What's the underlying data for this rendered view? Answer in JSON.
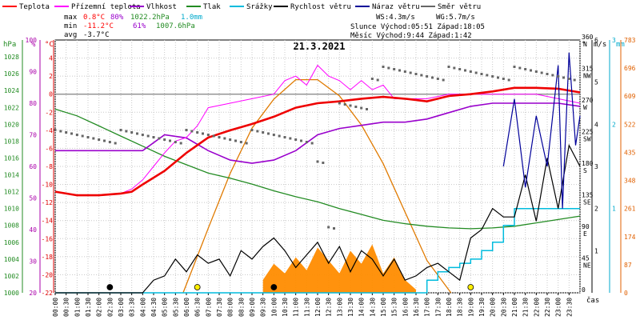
{
  "chart_data": {
    "type": "line",
    "title": "21.3.2021",
    "x_axis": {
      "label": "čas",
      "ticks": [
        "00:00",
        "00:30",
        "01:00",
        "01:30",
        "02:00",
        "02:30",
        "03:00",
        "03:30",
        "04:00",
        "04:30",
        "05:00",
        "05:30",
        "06:00",
        "06:30",
        "07:00",
        "07:30",
        "08:00",
        "08:30",
        "09:00",
        "09:30",
        "10:00",
        "10:30",
        "11:00",
        "11:30",
        "12:00",
        "12:30",
        "13:00",
        "13:30",
        "14:00",
        "14:30",
        "15:00",
        "15:30",
        "16:00",
        "16:30",
        "17:00",
        "17:30",
        "18:00",
        "18:30",
        "19:00",
        "19:30",
        "20:00",
        "20:30",
        "21:00",
        "21:30",
        "22:00",
        "22:30",
        "23:00",
        "23:30"
      ]
    },
    "axes": {
      "pressure": {
        "label": "hPa",
        "min": 1000,
        "max": 1030,
        "ticks": [
          "1000",
          "1002",
          "1004",
          "1006",
          "1008",
          "1010",
          "1012",
          "1014",
          "1016",
          "1018",
          "1020",
          "1022",
          "1024",
          "1026",
          "1028"
        ],
        "color": "#228b22"
      },
      "humidity": {
        "label": "%",
        "min": 20,
        "max": 100,
        "ticks": [
          "20",
          "30",
          "40",
          "50",
          "60",
          "70",
          "80",
          "90",
          "100"
        ],
        "color": "#aa00aa"
      },
      "temperature": {
        "label": "°C",
        "min": -22,
        "max": 6,
        "ticks": [
          "-22",
          "-20",
          "-18",
          "-16",
          "-14",
          "-12",
          "-10",
          "-8",
          "-6",
          "-4",
          "-2",
          "0",
          "2",
          "4"
        ],
        "color": "#dd0000"
      },
      "direction": {
        "label": "°",
        "ticks": [
          "0",
          "45",
          "90",
          "135",
          "180",
          "225",
          "270",
          "315",
          "360"
        ],
        "names": [
          "",
          "NE",
          "E",
          "SE",
          "S",
          "SW",
          "W",
          "NW",
          "N"
        ],
        "color": "#000000"
      },
      "wind": {
        "label": "m/s",
        "min": 0,
        "max": 6,
        "ticks": [
          "0",
          "1",
          "2",
          "3",
          "4",
          "5",
          "6"
        ],
        "color": "#000000"
      },
      "rain": {
        "label": "mm",
        "min": 0,
        "max": 3,
        "ticks": [
          "0",
          "1",
          "2",
          "3"
        ],
        "color": "#00aacc"
      },
      "radiation": {
        "ticks": [
          "0",
          "87",
          "174",
          "261",
          "348",
          "435",
          "522",
          "609",
          "696",
          "783"
        ],
        "min": 0,
        "max": 783,
        "color": "#e06000"
      }
    },
    "legend": [
      {
        "name": "Teplota",
        "color": "#ff0000"
      },
      {
        "name": "Přízemní teplota",
        "color": "#ff00ff"
      },
      {
        "name": "Vlhkost",
        "color": "#9900cc"
      },
      {
        "name": "Tlak",
        "color": "#228b22"
      },
      {
        "name": "Srážky",
        "color": "#00bbdd"
      },
      {
        "name": "Rychlost větru",
        "color": "#000000"
      },
      {
        "name": "Náraz větru",
        "color": "#000099"
      },
      {
        "name": "Směr větru",
        "color": "#666666"
      }
    ],
    "stats": {
      "max_label": "max",
      "max_temp": "0.8°C",
      "max_hum": "80%",
      "max_press": "1022.2hPa",
      "rain_total": "1.0mm",
      "min_label": "min",
      "min_temp": "-11.2°C",
      "min_hum": "61%",
      "min_press": "1007.6hPa",
      "avg_label": "avg",
      "avg_temp": "-3.7°C",
      "ws": "WS:4.3m/s",
      "wg": "WG:5.7m/s",
      "sun": "Slunce Východ:05:51  Západ:18:05",
      "moon": "Měsíc  Východ:9:44   Západ:1:42"
    },
    "series": [
      {
        "name": "Teplota",
        "axis": "temperature",
        "x": [
          0,
          1,
          2,
          3,
          3.5,
          4,
          5,
          6,
          7,
          8,
          9,
          10,
          11,
          12,
          13,
          14,
          15,
          16,
          17,
          18,
          19,
          20,
          21,
          22,
          23,
          24
        ],
        "values": [
          -10.8,
          -11.2,
          -11.2,
          -11.0,
          -10.8,
          -10.0,
          -8.5,
          -6.5,
          -4.8,
          -4.0,
          -3.3,
          -2.5,
          -1.5,
          -1.0,
          -0.8,
          -0.5,
          -0.3,
          -0.5,
          -0.8,
          -0.2,
          0.0,
          0.3,
          0.7,
          0.7,
          0.6,
          0.2
        ]
      },
      {
        "name": "Přízemní teplota",
        "axis": "temperature",
        "x": [
          0,
          1,
          2,
          3,
          3.5,
          4,
          4.5,
          5,
          5.5,
          6,
          6.5,
          7,
          8,
          9,
          10,
          10.5,
          11,
          11.5,
          12,
          12.5,
          13,
          13.5,
          14,
          14.5,
          15,
          15.5,
          16,
          17,
          18,
          19,
          20,
          21,
          22,
          23,
          24
        ],
        "values": [
          -10.8,
          -11.2,
          -11.2,
          -11.0,
          -10.5,
          -9.5,
          -8.0,
          -6.5,
          -5.2,
          -4.8,
          -3.5,
          -1.5,
          -1.0,
          -0.5,
          0.0,
          1.5,
          2.0,
          1.0,
          3.2,
          2.0,
          1.5,
          0.5,
          1.5,
          0.5,
          1.0,
          -0.5,
          -0.5,
          -0.5,
          0.0,
          0.0,
          0.0,
          0.0,
          0.0,
          -0.5,
          -1.0
        ]
      },
      {
        "name": "Vlhkost",
        "axis": "humidity",
        "x": [
          0,
          1,
          2,
          3,
          4,
          5,
          6,
          7,
          8,
          9,
          10,
          11,
          12,
          13,
          14,
          15,
          16,
          17,
          18,
          19,
          20,
          21,
          22,
          23,
          24
        ],
        "values": [
          65,
          65,
          65,
          65,
          65,
          70,
          69,
          65,
          62,
          61,
          62,
          65,
          70,
          72,
          73,
          74,
          74,
          75,
          77,
          79,
          80,
          80,
          80,
          80,
          79
        ]
      },
      {
        "name": "Tlak",
        "axis": "pressure",
        "x": [
          0,
          1,
          2,
          3,
          4,
          5,
          6,
          7,
          8,
          9,
          10,
          11,
          12,
          13,
          14,
          15,
          16,
          17,
          18,
          19,
          20,
          21,
          22,
          23,
          24
        ],
        "values": [
          1021.8,
          1021.0,
          1019.8,
          1018.6,
          1017.4,
          1016.2,
          1015.2,
          1014.2,
          1013.6,
          1012.9,
          1012.1,
          1011.4,
          1010.8,
          1010.0,
          1009.3,
          1008.6,
          1008.2,
          1007.9,
          1007.7,
          1007.6,
          1007.7,
          1007.9,
          1008.3,
          1008.7,
          1009.1
        ]
      },
      {
        "name": "Srážky",
        "axis": "rain",
        "x": [
          0,
          12,
          16.5,
          17,
          17.5,
          18,
          18.5,
          19,
          19.5,
          20,
          20.5,
          21,
          21.5,
          22,
          22.5,
          23,
          23.5,
          24
        ],
        "values": [
          0,
          0,
          0,
          0.15,
          0.25,
          0.3,
          0.35,
          0.4,
          0.5,
          0.6,
          0.8,
          1.0,
          1.0,
          1.0,
          1.0,
          1.0,
          1.0,
          1.0
        ]
      },
      {
        "name": "Rychlost větru",
        "axis": "wind",
        "x": [
          0,
          4,
          4.5,
          5,
          5.5,
          6,
          6.5,
          7,
          7.5,
          8,
          8.5,
          9,
          9.5,
          10,
          10.5,
          11,
          11.5,
          12,
          12.5,
          13,
          13.5,
          14,
          14.5,
          15,
          15.5,
          16,
          16.5,
          17,
          17.5,
          18,
          18.5,
          19,
          19.5,
          20,
          20.5,
          21,
          21.5,
          22,
          22.5,
          23,
          23.5,
          24
        ],
        "values": [
          0,
          0,
          0.3,
          0.4,
          0.8,
          0.5,
          0.9,
          0.7,
          0.8,
          0.4,
          1.0,
          0.8,
          1.1,
          1.3,
          1.0,
          0.6,
          0.9,
          1.2,
          0.7,
          1.1,
          0.5,
          1.0,
          0.8,
          0.4,
          0.8,
          0.3,
          0.4,
          0.6,
          0.7,
          0.5,
          0.3,
          1.3,
          1.5,
          2.0,
          1.8,
          1.8,
          2.8,
          1.7,
          3.2,
          2.0,
          3.5,
          3.0
        ]
      },
      {
        "name": "Náraz větru",
        "axis": "wind",
        "x": [
          20.5,
          21,
          21.5,
          22,
          22.5,
          23,
          23.2,
          23.5,
          23.8,
          24
        ],
        "values": [
          3.0,
          4.6,
          2.5,
          4.2,
          3.0,
          5.4,
          2.0,
          5.7,
          3.5,
          4.2
        ]
      },
      {
        "name": "Sluneční záření",
        "axis": "radiation",
        "x": [
          5.85,
          7,
          8,
          9,
          10,
          11,
          12,
          13,
          14,
          15,
          16,
          17,
          18.1
        ],
        "values": [
          0,
          200,
          370,
          510,
          600,
          660,
          660,
          610,
          520,
          400,
          250,
          100,
          0
        ]
      }
    ],
    "wind_direction": {
      "x": [
        0,
        1,
        2,
        3,
        4,
        5,
        6,
        7,
        8,
        9,
        10,
        11,
        12,
        12.5,
        13,
        14,
        14.5,
        15,
        16,
        17,
        18,
        19,
        20,
        21,
        22,
        23,
        24
      ],
      "values": [
        225,
        225,
        225,
        225,
        225,
        225,
        225,
        225,
        225,
        225,
        225,
        225,
        180,
        90,
        270,
        270,
        315,
        315,
        315,
        315,
        315,
        315,
        315,
        315,
        315,
        315,
        315
      ]
    },
    "events": {
      "rain_sun_markers": [
        2.5,
        6.5,
        10,
        19
      ]
    }
  }
}
